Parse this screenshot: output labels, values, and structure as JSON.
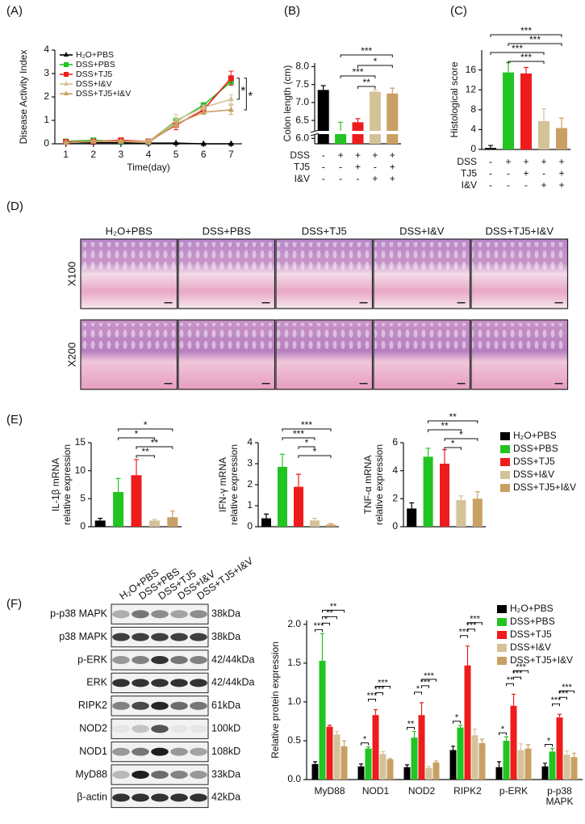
{
  "panel_labels": [
    "(A)",
    "(B)",
    "(C)",
    "(D)",
    "(E)",
    "(F)"
  ],
  "histology": {
    "columns": [
      "H₂O+PBS",
      "DSS+PBS",
      "DSS+TJ5",
      "DSS+I&V",
      "DSS+TJ5+I&V"
    ],
    "rows": [
      "X100",
      "X200"
    ]
  },
  "blot": {
    "lanes": [
      "H₂O+PBS",
      "DSS+PBS",
      "DSS+TJ5",
      "DSS+I&V",
      "DSS+TJ5+I&V"
    ],
    "rows": [
      {
        "protein": "p-p38 MAPK",
        "size": "38kDa"
      },
      {
        "protein": "p38 MAPK",
        "size": "38kDa"
      },
      {
        "protein": "p-ERK",
        "size": "42/44kDa"
      },
      {
        "protein": "ERK",
        "size": "42/44kDa"
      },
      {
        "protein": "RIPK2",
        "size": "61kDa"
      },
      {
        "protein": "NOD2",
        "size": "100kD"
      },
      {
        "protein": "NOD1",
        "size": "108kD"
      },
      {
        "protein": "MyD88",
        "size": "33kDa"
      },
      {
        "protein": "β-actin",
        "size": "42kDa"
      }
    ]
  },
  "chart_data": [
    {
      "type": "line",
      "ylabel": "Disease Activity Index",
      "xlabel": "Time(day)",
      "x": [
        1,
        2,
        3,
        4,
        5,
        6,
        7
      ],
      "xlim": [
        0.6,
        7.4
      ],
      "xticks": [
        1,
        2,
        3,
        4,
        5,
        6,
        7
      ],
      "ylim": [
        0,
        4
      ],
      "yticks": [
        0,
        1,
        2,
        3,
        4
      ],
      "series": [
        {
          "name": "H₂O+PBS",
          "color": "#000000",
          "marker": "^",
          "values": [
            0.05,
            0.05,
            0.05,
            0.03,
            0.03,
            0.0,
            0.0
          ],
          "errors": [
            0.02,
            0.02,
            0.02,
            0.02,
            0.02,
            0.02,
            0.02
          ]
        },
        {
          "name": "DSS+PBS",
          "color": "#22c422",
          "marker": "s",
          "values": [
            0.1,
            0.15,
            0.1,
            0.1,
            0.95,
            1.65,
            2.65
          ],
          "errors": [
            0.05,
            0.05,
            0.05,
            0.05,
            0.15,
            0.1,
            0.1
          ]
        },
        {
          "name": "DSS+TJ5",
          "color": "#ee1c1c",
          "marker": "s",
          "values": [
            0.08,
            0.1,
            0.15,
            0.1,
            0.8,
            1.45,
            2.8
          ],
          "errors": [
            0.05,
            0.05,
            0.1,
            0.05,
            0.2,
            0.15,
            0.3
          ]
        },
        {
          "name": "DSS+I&V",
          "color": "#d4c398",
          "marker": "^",
          "values": [
            0.05,
            0.1,
            0.1,
            0.1,
            1.0,
            1.55,
            1.9
          ],
          "errors": [
            0.05,
            0.05,
            0.05,
            0.05,
            0.25,
            0.1,
            0.2
          ]
        },
        {
          "name": "DSS+TJ5+I&V",
          "color": "#c9a064",
          "marker": "^",
          "values": [
            0.05,
            0.1,
            0.1,
            0.05,
            0.85,
            1.35,
            1.45
          ],
          "errors": [
            0.05,
            0.05,
            0.05,
            0.05,
            0.15,
            0.1,
            0.2
          ]
        }
      ],
      "significance": [
        {
          "label": "*",
          "series": [
            2,
            3
          ]
        },
        {
          "label": "*",
          "series": [
            2,
            4
          ]
        }
      ]
    },
    {
      "type": "bar",
      "ylabel": "Colon length (cm)",
      "categories": [
        null,
        null,
        null,
        null,
        null
      ],
      "values": [
        7.35,
        6.2,
        6.45,
        7.3,
        7.25
      ],
      "errors": [
        0.12,
        0.25,
        0.1,
        0.05,
        0.15
      ],
      "colors": [
        "#000000",
        "#22c422",
        "#ee1c1c",
        "#d4c398",
        "#c9a064"
      ],
      "ylim": [
        5.85,
        8.1
      ],
      "yticks": [
        {
          "value": 6,
          "label": "6.0"
        },
        6.5,
        {
          "value": 7,
          "label": "7.0"
        },
        7.5,
        {
          "value": 8,
          "label": "8.0"
        }
      ],
      "conditions": [
        {
          "name": "DSS",
          "signs": [
            "-",
            "+",
            "+",
            "+",
            "+"
          ]
        },
        {
          "name": "TJ5",
          "signs": [
            "-",
            "-",
            "+",
            "-",
            "+"
          ]
        },
        {
          "name": "I&V",
          "signs": [
            "-",
            "-",
            "-",
            "+",
            "+"
          ]
        }
      ],
      "significance": [
        {
          "label": "***",
          "between": [
            1,
            4
          ]
        },
        {
          "label": "*",
          "between": [
            2,
            4
          ]
        },
        {
          "label": "***",
          "between": [
            1,
            3
          ]
        },
        {
          "label": "**",
          "between": [
            2,
            3
          ]
        }
      ]
    },
    {
      "type": "bar",
      "ylabel": "Histological score",
      "categories": [
        null,
        null,
        null,
        null,
        null
      ],
      "values": [
        0.3,
        15.5,
        15.3,
        5.7,
        4.3
      ],
      "errors": [
        0.5,
        2,
        1.2,
        2.5,
        2
      ],
      "colors": [
        "#000000",
        "#22c422",
        "#ee1c1c",
        "#d4c398",
        "#c9a064"
      ],
      "ylim": [
        0,
        20
      ],
      "yticks": [
        0,
        4,
        8,
        12,
        16
      ],
      "conditions": [
        {
          "name": "DSS",
          "signs": [
            "-",
            "+",
            "+",
            "+",
            "+"
          ]
        },
        {
          "name": "TJ5",
          "signs": [
            "-",
            "-",
            "+",
            "-",
            "+"
          ]
        },
        {
          "name": "I&V",
          "signs": [
            "-",
            "-",
            "-",
            "+",
            "+"
          ]
        }
      ],
      "significance": [
        {
          "label": "***",
          "between": [
            0,
            4
          ]
        },
        {
          "label": "***",
          "between": [
            1,
            4
          ]
        },
        {
          "label": "***",
          "between": [
            0,
            3
          ]
        },
        {
          "label": "***",
          "between": [
            1,
            3
          ]
        }
      ]
    },
    {
      "type": "bar",
      "ylabel": [
        "IL-1β mRNA",
        "relative expression"
      ],
      "categories": [
        null,
        null,
        null,
        null,
        null
      ],
      "values": [
        1.1,
        6.2,
        9.2,
        1.1,
        1.7
      ],
      "errors": [
        0.4,
        2.4,
        2.8,
        0.2,
        1.1
      ],
      "colors": [
        "#000000",
        "#22c422",
        "#ee1c1c",
        "#d4c398",
        "#c9a064"
      ],
      "ylim": [
        0,
        15
      ],
      "yticks": [
        0,
        5,
        10,
        15
      ],
      "significance": [
        {
          "label": "*",
          "between": [
            1,
            4
          ]
        },
        {
          "label": "*",
          "between": [
            1,
            3
          ]
        },
        {
          "label": "**",
          "between": [
            2,
            4
          ]
        },
        {
          "label": "**",
          "between": [
            2,
            3
          ]
        }
      ]
    },
    {
      "type": "bar",
      "ylabel": [
        "IFN-γ mRNA",
        "relative expression"
      ],
      "categories": [
        null,
        null,
        null,
        null,
        null
      ],
      "values": [
        0.4,
        2.85,
        1.9,
        0.3,
        0.1
      ],
      "errors": [
        0.2,
        0.6,
        0.6,
        0.1,
        0.05
      ],
      "colors": [
        "#000000",
        "#22c422",
        "#ee1c1c",
        "#d4c398",
        "#c9a064"
      ],
      "ylim": [
        0,
        4
      ],
      "yticks": [
        0,
        1,
        2,
        3,
        4
      ],
      "significance": [
        {
          "label": "***",
          "between": [
            1,
            4
          ]
        },
        {
          "label": "***",
          "between": [
            1,
            3
          ]
        },
        {
          "label": "*",
          "between": [
            2,
            3
          ]
        },
        {
          "label": "*",
          "between": [
            2,
            4
          ]
        }
      ]
    },
    {
      "type": "bar",
      "ylabel": [
        "TNF-α mRNA",
        "relative expression"
      ],
      "categories": [
        null,
        null,
        null,
        null,
        null
      ],
      "values": [
        1.3,
        5.0,
        4.5,
        1.9,
        2.0
      ],
      "errors": [
        0.4,
        0.6,
        1.0,
        0.3,
        0.5
      ],
      "colors": [
        "#000000",
        "#22c422",
        "#ee1c1c",
        "#d4c398",
        "#c9a064"
      ],
      "ylim": [
        0,
        6
      ],
      "yticks": [
        0,
        2,
        4,
        6
      ],
      "legend": [
        "H₂O+PBS",
        "DSS+PBS",
        "DSS+TJ5",
        "DSS+I&V",
        "DSS+TJ5+I&V"
      ],
      "significance": [
        {
          "label": "**",
          "between": [
            1,
            4
          ]
        },
        {
          "label": "**",
          "between": [
            1,
            3
          ]
        },
        {
          "label": "*",
          "between": [
            2,
            4
          ]
        },
        {
          "label": "*",
          "between": [
            2,
            3
          ]
        }
      ]
    },
    {
      "type": "grouped_bar",
      "ylabel": "Relative protein expression",
      "categories": [
        "MyD88",
        "NOD1",
        "NOD2",
        "RIPK2",
        "p-ERK",
        "p-p38 MAPK"
      ],
      "ylim": [
        0,
        2.05
      ],
      "yticks": [
        {
          "value": 0,
          "label": "0.0"
        },
        0.5,
        {
          "value": 1,
          "label": "1.0"
        },
        1.5,
        {
          "value": 2,
          "label": "2.0"
        }
      ],
      "series": [
        {
          "name": "H₂O+PBS",
          "color": "#000000",
          "values": [
            0.2,
            0.17,
            0.16,
            0.38,
            0.16,
            0.17
          ],
          "errors": [
            0.03,
            0.03,
            0.03,
            0.05,
            0.07,
            0.04
          ]
        },
        {
          "name": "DSS+PBS",
          "color": "#22c422",
          "values": [
            1.53,
            0.4,
            0.54,
            0.67,
            0.5,
            0.36
          ],
          "errors": [
            0.35,
            0.02,
            0.08,
            0.03,
            0.05,
            0.04
          ]
        },
        {
          "name": "DSS+TJ5",
          "color": "#ee1c1c",
          "values": [
            0.68,
            0.83,
            0.83,
            1.47,
            0.95,
            0.8
          ],
          "errors": [
            0.02,
            0.07,
            0.16,
            0.25,
            0.15,
            0.04
          ]
        },
        {
          "name": "DSS+I&V",
          "color": "#d4c398",
          "values": [
            0.58,
            0.33,
            0.15,
            0.57,
            0.38,
            0.32
          ],
          "errors": [
            0.04,
            0.03,
            0.02,
            0.08,
            0.08,
            0.05
          ]
        },
        {
          "name": "DSS+TJ5+I&V",
          "color": "#c9a064",
          "values": [
            0.43,
            0.26,
            0.22,
            0.47,
            0.4,
            0.29
          ],
          "errors": [
            0.07,
            0.01,
            0.02,
            0.05,
            0.05,
            0.05
          ]
        }
      ],
      "significance": [
        {
          "category": 0,
          "between": [
            0,
            1
          ],
          "label": "***"
        },
        {
          "category": 0,
          "between": [
            1,
            2
          ],
          "label": "*"
        },
        {
          "category": 0,
          "between": [
            1,
            3
          ],
          "label": "**"
        },
        {
          "category": 0,
          "between": [
            1,
            4
          ],
          "label": "**"
        },
        {
          "category": 1,
          "between": [
            0,
            1
          ],
          "label": "*"
        },
        {
          "category": 1,
          "between": [
            1,
            2
          ],
          "label": "***"
        },
        {
          "category": 1,
          "between": [
            2,
            3
          ],
          "label": "***"
        },
        {
          "category": 1,
          "between": [
            2,
            4
          ],
          "label": "***"
        },
        {
          "category": 2,
          "between": [
            0,
            1
          ],
          "label": "**"
        },
        {
          "category": 2,
          "between": [
            1,
            2
          ],
          "label": "*"
        },
        {
          "category": 2,
          "between": [
            2,
            3
          ],
          "label": "***"
        },
        {
          "category": 2,
          "between": [
            2,
            4
          ],
          "label": "***"
        },
        {
          "category": 3,
          "between": [
            0,
            1
          ],
          "label": "*"
        },
        {
          "category": 3,
          "between": [
            1,
            2
          ],
          "label": "***"
        },
        {
          "category": 3,
          "between": [
            2,
            3
          ],
          "label": "***"
        },
        {
          "category": 3,
          "between": [
            2,
            4
          ],
          "label": "***"
        },
        {
          "category": 4,
          "between": [
            0,
            1
          ],
          "label": "*"
        },
        {
          "category": 4,
          "between": [
            1,
            2
          ],
          "label": "**"
        },
        {
          "category": 4,
          "between": [
            2,
            3
          ],
          "label": "***"
        },
        {
          "category": 4,
          "between": [
            2,
            4
          ],
          "label": "***"
        },
        {
          "category": 5,
          "between": [
            0,
            1
          ],
          "label": "*"
        },
        {
          "category": 5,
          "between": [
            1,
            2
          ],
          "label": "***"
        },
        {
          "category": 5,
          "between": [
            2,
            3
          ],
          "label": "***"
        },
        {
          "category": 5,
          "between": [
            2,
            4
          ],
          "label": "***"
        }
      ]
    }
  ]
}
